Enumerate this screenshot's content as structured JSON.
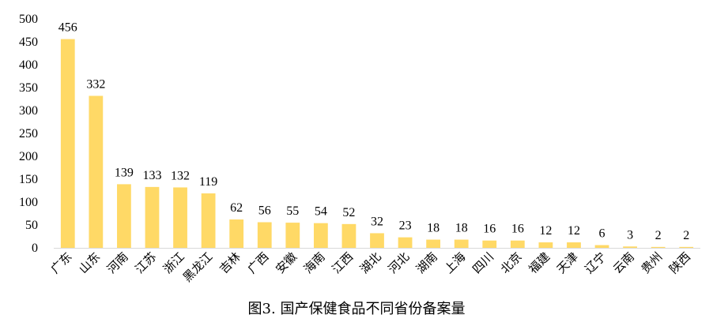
{
  "chart_data": {
    "type": "bar",
    "title": "图3. 国产保健食品不同省份备案量",
    "xlabel": "",
    "ylabel": "",
    "ylim": [
      0,
      500
    ],
    "yticks": [
      0,
      50,
      100,
      150,
      200,
      250,
      300,
      350,
      400,
      450,
      500
    ],
    "grid": false,
    "legend": "none",
    "bar_color": "#FFD966",
    "categories": [
      "广东",
      "山东",
      "河南",
      "江苏",
      "浙江",
      "黑龙江",
      "吉林",
      "广西",
      "安徽",
      "海南",
      "江西",
      "湖北",
      "河北",
      "湖南",
      "上海",
      "四川",
      "北京",
      "福建",
      "天津",
      "辽宁",
      "云南",
      "贵州",
      "陕西"
    ],
    "values": [
      456,
      332,
      139,
      133,
      132,
      119,
      62,
      56,
      55,
      54,
      52,
      32,
      23,
      18,
      18,
      16,
      16,
      12,
      12,
      6,
      3,
      2,
      2
    ]
  }
}
